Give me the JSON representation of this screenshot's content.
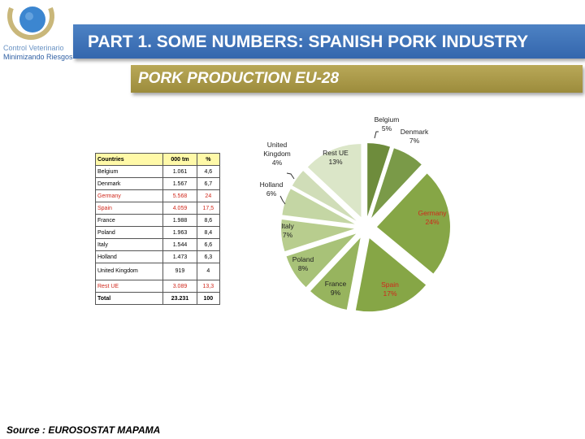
{
  "logo": {
    "line1": "Control Veterinario",
    "line2": "Minimizando Riesgos"
  },
  "header": {
    "title": "PART 1. SOME NUMBERS: SPANISH PORK INDUSTRY"
  },
  "subheader": {
    "title": "PORK PRODUCTION EU-28"
  },
  "colors": {
    "banner": "#3d73b9",
    "subbanner": "#aa9a48",
    "highlight": "#d0281c",
    "table_header": "#fff9a8"
  },
  "table": {
    "headers": [
      "Countries",
      "000 tm",
      "%"
    ],
    "rows": [
      {
        "country": "Belgium",
        "tm": "1.061",
        "pct": "4,6"
      },
      {
        "country": "Denmark",
        "tm": "1.567",
        "pct": "6,7"
      },
      {
        "country": "Germany",
        "tm": "5.568",
        "pct": "24"
      },
      {
        "country": "Spain",
        "tm": "4.059",
        "pct": "17,5"
      },
      {
        "country": "France",
        "tm": "1.988",
        "pct": "8,6"
      },
      {
        "country": "Poland",
        "tm": "1.963",
        "pct": "8,4"
      },
      {
        "country": "Italy",
        "tm": "1.544",
        "pct": "6,6"
      },
      {
        "country": "Holland",
        "tm": "1.473",
        "pct": "6,3"
      },
      {
        "country": "United Kingdom",
        "tm": "919",
        "pct": "4"
      },
      {
        "country": "Rest UE",
        "tm": "3.089",
        "pct": "13,3"
      }
    ],
    "total": {
      "country": "Total",
      "tm": "23.231",
      "pct": "100"
    }
  },
  "chart_data": {
    "type": "pie",
    "categories": [
      "Belgium",
      "Denmark",
      "Germany",
      "Spain",
      "France",
      "Poland",
      "Italy",
      "Holland",
      "United Kingdom",
      "Rest UE"
    ],
    "values": [
      5,
      7,
      24,
      17,
      9,
      8,
      7,
      6,
      4,
      13
    ],
    "value_labels": [
      "5%",
      "7%",
      "24%",
      "17%",
      "9%",
      "8%",
      "7%",
      "6%",
      "4%",
      "13%"
    ],
    "colors": [
      "#6e8c3c",
      "#7a9a48",
      "#86a646",
      "#86a646",
      "#97b45e",
      "#a8c278",
      "#b8cd8e",
      "#c4d6a4",
      "#d0ddb8",
      "#dbe6c8"
    ],
    "label_colors": [
      "#222222",
      "#222222",
      "#d0281c",
      "#d0281c",
      "#222222",
      "#222222",
      "#222222",
      "#222222",
      "#222222",
      "#222222"
    ],
    "legend": "none"
  },
  "footer": {
    "source": "Source : EUROSOSTAT MAPAMA"
  }
}
